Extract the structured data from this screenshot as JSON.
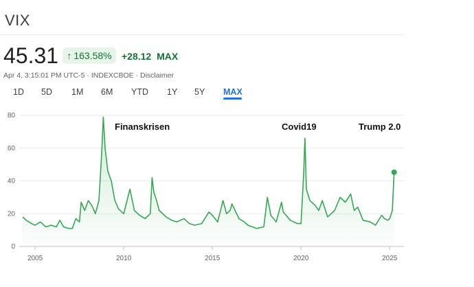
{
  "ticker": "VIX",
  "price": "45.31",
  "change_pct": "163.58%",
  "change_abs": "+28.12",
  "change_period": "MAX",
  "meta": {
    "timestamp": "Apr 4, 3:15:01 PM UTC-5",
    "exchange": "INDEXCBOE",
    "disclaimer": "Disclaimer"
  },
  "tabs": [
    "1D",
    "5D",
    "1M",
    "6M",
    "YTD",
    "1Y",
    "5Y",
    "MAX"
  ],
  "active_tab": "MAX",
  "icons": {
    "change_arrow": "arrow-up-icon"
  },
  "colors": {
    "accent": "#1a73e8",
    "positive": "#137333",
    "positive_bg": "#e6f4ea",
    "line": "#34a853"
  },
  "chart_data": {
    "type": "area",
    "title": "",
    "xlabel": "",
    "ylabel": "",
    "xlim": [
      2004.3,
      2025.3
    ],
    "ylim": [
      0,
      80
    ],
    "x_ticks": [
      "2005",
      "2010",
      "2015",
      "2020",
      "2025"
    ],
    "y_ticks": [
      "0",
      "20",
      "40",
      "60",
      "80"
    ],
    "grid": true,
    "series": [
      {
        "x": [
          2004.3,
          2004.5,
          2004.8,
          2005.0,
          2005.3,
          2005.6,
          2005.9,
          2006.2,
          2006.4,
          2006.6,
          2006.9,
          2007.1,
          2007.3,
          2007.5,
          2007.6,
          2007.8,
          2008.0,
          2008.2,
          2008.4,
          2008.6,
          2008.75,
          2008.85,
          2008.95,
          2009.1,
          2009.3,
          2009.5,
          2009.7,
          2010.0,
          2010.35,
          2010.6,
          2010.9,
          2011.2,
          2011.5,
          2011.6,
          2011.7,
          2011.85,
          2012.0,
          2012.4,
          2012.7,
          2013.0,
          2013.4,
          2013.7,
          2014.0,
          2014.4,
          2014.8,
          2015.0,
          2015.3,
          2015.6,
          2015.8,
          2016.0,
          2016.1,
          2016.5,
          2016.8,
          2017.0,
          2017.5,
          2017.9,
          2018.1,
          2018.3,
          2018.6,
          2018.9,
          2019.0,
          2019.4,
          2019.8,
          2020.0,
          2020.15,
          2020.22,
          2020.3,
          2020.5,
          2020.8,
          2021.0,
          2021.2,
          2021.5,
          2021.9,
          2022.2,
          2022.5,
          2022.8,
          2023.0,
          2023.2,
          2023.5,
          2023.9,
          2024.2,
          2024.55,
          2024.7,
          2024.9,
          2025.0,
          2025.15,
          2025.25
        ],
        "values": [
          18,
          16,
          14,
          13,
          15,
          12,
          13,
          12,
          16,
          12,
          11,
          11,
          17,
          15,
          27,
          22,
          28,
          25,
          20,
          28,
          56,
          79,
          60,
          46,
          40,
          28,
          23,
          20,
          35,
          22,
          19,
          17,
          20,
          42,
          33,
          28,
          22,
          18,
          16,
          15,
          17,
          14,
          13,
          14,
          21,
          19,
          15,
          28,
          20,
          22,
          26,
          17,
          15,
          13,
          11,
          12,
          30,
          19,
          15,
          27,
          21,
          16,
          14,
          14,
          45,
          66,
          35,
          28,
          25,
          22,
          28,
          18,
          22,
          30,
          27,
          32,
          22,
          24,
          16,
          15,
          13,
          19,
          17,
          16,
          17,
          22,
          45.31
        ]
      }
    ],
    "annotations": [
      "Finanskrisen",
      "Covid19",
      "Trump 2.0"
    ],
    "last_value": 45.31
  }
}
